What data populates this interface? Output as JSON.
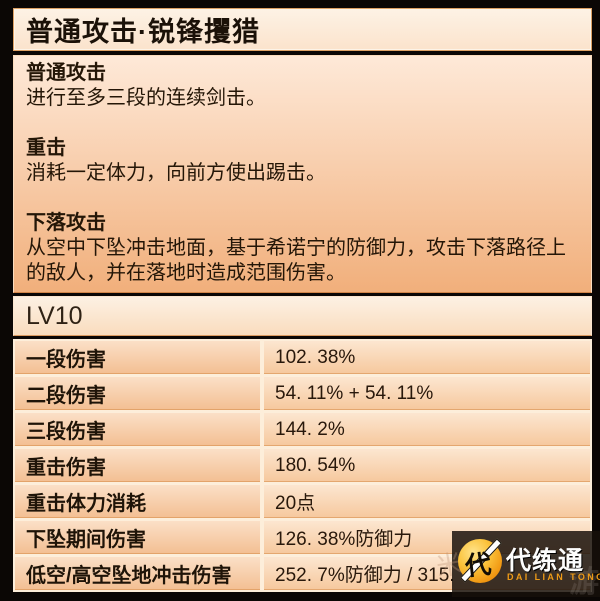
{
  "title_bar": {
    "title": "普通攻击·锐锋攫猎"
  },
  "skill_sections": [
    {
      "heading": "普通攻击",
      "body": "进行至多三段的连续剑击。"
    },
    {
      "heading": "重击",
      "body": "消耗一定体力，向前方使出踢击。"
    },
    {
      "heading": "下落攻击",
      "body": "从空中下坠冲击地面，基于希诺宁的防御力，攻击下落路径上的敌人，并在落地时造成范围伤害。"
    }
  ],
  "level_header": {
    "label": "LV10"
  },
  "stats_table": {
    "rows": [
      {
        "label": "一段伤害",
        "value": "102. 38%"
      },
      {
        "label": "二段伤害",
        "value": "54. 11% + 54. 11%"
      },
      {
        "label": "三段伤害",
        "value": "144. 2%"
      },
      {
        "label": "重击伤害",
        "value": "180. 54%"
      },
      {
        "label": "重击体力消耗",
        "value": "20点"
      },
      {
        "label": "下坠期间伤害",
        "value": "126. 38%防御力"
      },
      {
        "label": "低空/高空坠地冲击伤害",
        "value": "252. 7%防御力 / 315."
      }
    ]
  },
  "watermark": {
    "logo_char": "代",
    "site_name": "代练通",
    "site_name_latin": "DAI LIAN TONG",
    "ghost_char_left": "米",
    "ghost_char_corner": "游"
  },
  "colors": {
    "page_background": "#0b0705",
    "panel_cream": "#fdeedd",
    "peach_gradient_top": "#fee9d8",
    "peach_gradient_bottom": "#f1af7b",
    "cell_border_cream": "#fdeeda",
    "accent_orange_edge": "#d28548",
    "watermark_gold": "#ee9b17",
    "text_dark": "#241607"
  }
}
